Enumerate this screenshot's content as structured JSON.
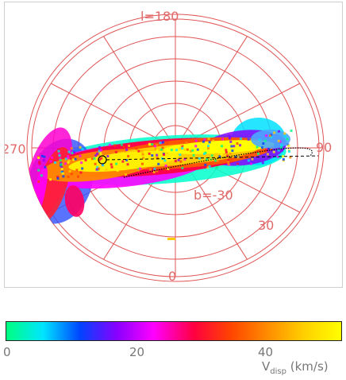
{
  "chart_data": {
    "type": "heatmap",
    "projection": "polar sky map (Aitoff-like)",
    "grid_labels": {
      "top": "l=180",
      "left": "270",
      "right": "90",
      "bottom": "0",
      "ring_b": "b=-30",
      "ring_30": "30"
    },
    "colorbar": {
      "min": 0,
      "max": 53,
      "ticks": [
        0,
        20,
        40
      ],
      "label_main": "V",
      "label_sub": "disp",
      "label_units": "(km/s)",
      "colors": [
        "#00ff80",
        "#00e5ff",
        "#0044ff",
        "#8800ff",
        "#ff00ff",
        "#ff0040",
        "#ff4400",
        "#ff8c00",
        "#ffd000",
        "#ffff00"
      ]
    },
    "markers": {
      "open_circle": "galactic center position",
      "dashed_line": "connecting line",
      "stream_track": "dotted orbit track"
    }
  }
}
